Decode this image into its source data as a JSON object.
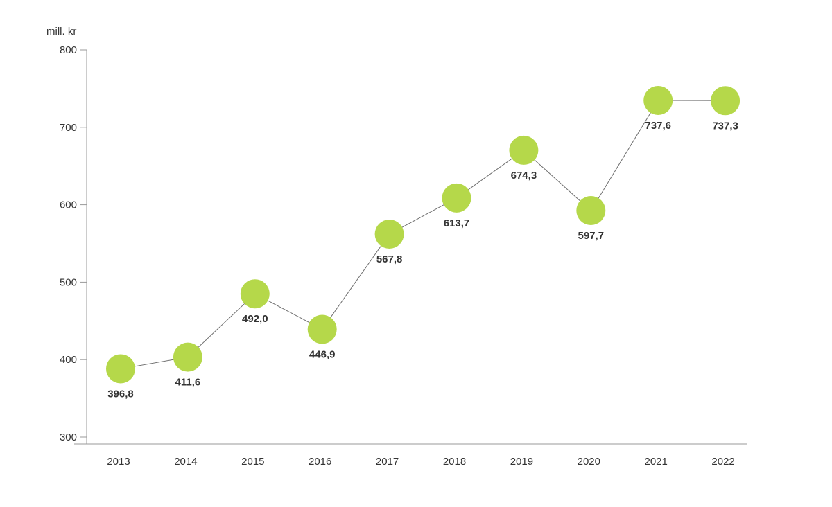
{
  "chart_data": {
    "type": "line",
    "title": "",
    "xlabel": "",
    "ylabel": "mill. kr",
    "categories": [
      "2013",
      "2014",
      "2015",
      "2016",
      "2017",
      "2018",
      "2019",
      "2020",
      "2021",
      "2022"
    ],
    "series": [
      {
        "values": [
          396.8,
          411.6,
          492.0,
          446.9,
          567.8,
          613.7,
          674.3,
          597.7,
          737.6,
          737.3
        ],
        "labels": [
          "396,8",
          "411,6",
          "492,0",
          "446,9",
          "567,8",
          "613,7",
          "674,3",
          "597,7",
          "737,6",
          "737,3"
        ],
        "marker_color": "#b5d84a",
        "line_color": "#6e6e6e"
      }
    ],
    "ylim": [
      300,
      800
    ],
    "yticks": [
      300,
      400,
      500,
      600,
      700,
      800
    ],
    "ytick_labels": [
      "300",
      "400",
      "500",
      "600",
      "700",
      "800"
    ],
    "grid": false,
    "legend": "none"
  }
}
